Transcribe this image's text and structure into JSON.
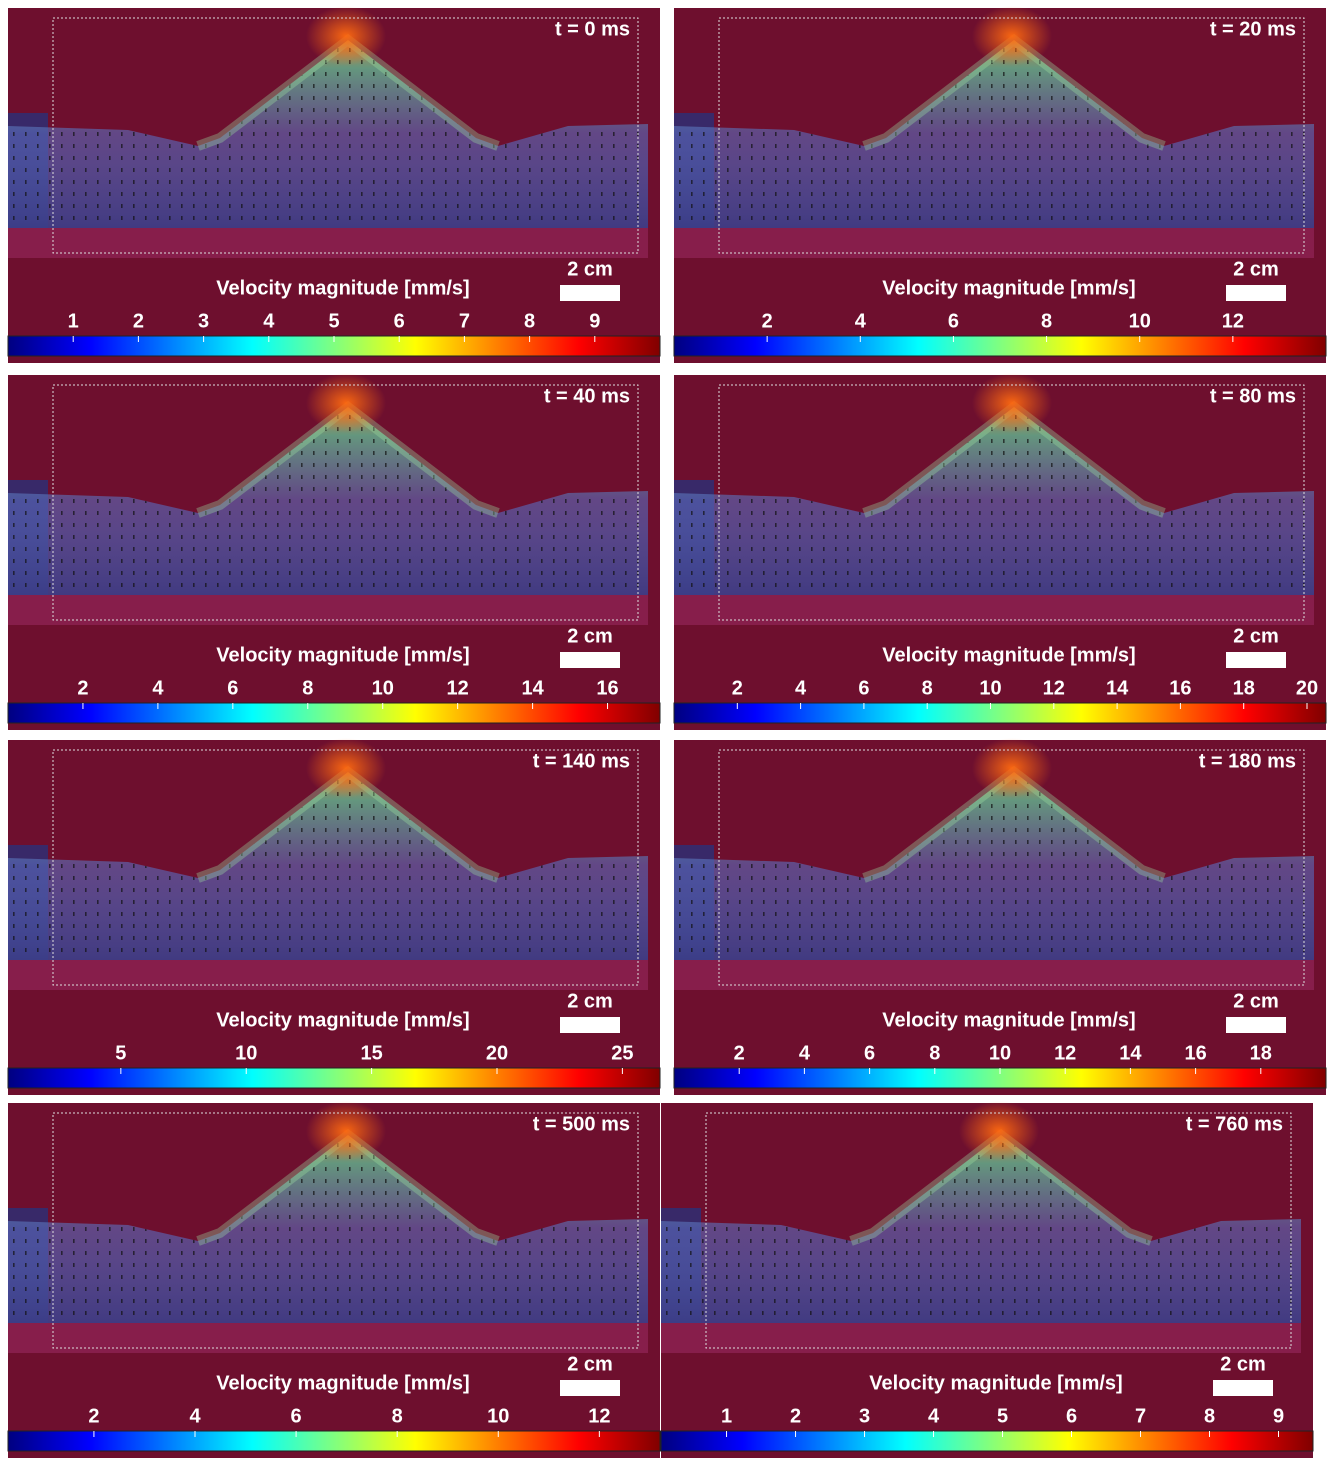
{
  "panels": [
    {
      "time": "t = 0 ms",
      "scale_bar": "2 cm",
      "colorbar": {
        "label": "Velocity magnitude [mm/s]",
        "lim": [
          0,
          10
        ],
        "ticks": [
          1,
          2,
          3,
          4,
          5,
          6,
          7,
          8,
          9
        ]
      }
    },
    {
      "time": "t = 20 ms",
      "scale_bar": "2 cm",
      "colorbar": {
        "label": "Velocity magnitude [mm/s]",
        "lim": [
          0,
          14
        ],
        "ticks": [
          2,
          4,
          6,
          8,
          10,
          12
        ]
      }
    },
    {
      "time": "t = 40 ms",
      "scale_bar": "2 cm",
      "colorbar": {
        "label": "Velocity magnitude [mm/s]",
        "lim": [
          0,
          17.4
        ],
        "ticks": [
          2,
          4,
          6,
          8,
          10,
          12,
          14,
          16
        ]
      }
    },
    {
      "time": "t = 80 ms",
      "scale_bar": "2 cm",
      "colorbar": {
        "label": "Velocity magnitude [mm/s]",
        "lim": [
          0,
          20.6
        ],
        "ticks": [
          2,
          4,
          6,
          8,
          10,
          12,
          14,
          16,
          18,
          20
        ]
      }
    },
    {
      "time": "t = 140 ms",
      "scale_bar": "2 cm",
      "colorbar": {
        "label": "Velocity magnitude [mm/s]",
        "lim": [
          0.5,
          26.5
        ],
        "ticks": [
          5,
          10,
          15,
          20,
          25
        ]
      }
    },
    {
      "time": "t = 180 ms",
      "scale_bar": "2 cm",
      "colorbar": {
        "label": "Velocity magnitude [mm/s]",
        "lim": [
          0,
          20
        ],
        "ticks": [
          2,
          4,
          6,
          8,
          10,
          12,
          14,
          16,
          18
        ]
      }
    },
    {
      "time": "t = 500 ms",
      "scale_bar": "2 cm",
      "colorbar": {
        "label": "Velocity magnitude [mm/s]",
        "lim": [
          0.3,
          13.2
        ],
        "ticks": [
          2,
          4,
          6,
          8,
          10,
          12
        ]
      }
    },
    {
      "time": "t = 760 ms",
      "scale_bar": "2 cm",
      "colorbar": {
        "label": "Velocity magnitude [mm/s]",
        "lim": [
          0.05,
          9.5
        ],
        "ticks": [
          1,
          2,
          3,
          4,
          5,
          6,
          7,
          8,
          9
        ]
      }
    }
  ]
}
